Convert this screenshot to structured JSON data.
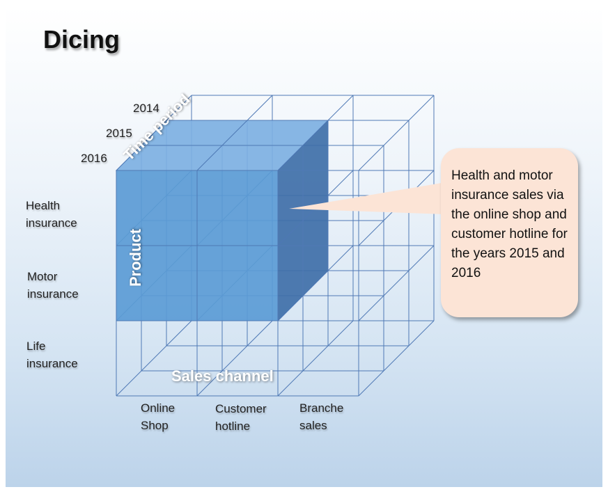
{
  "slide": {
    "title": "Dicing",
    "time_period": {
      "axis_title": "Time period",
      "years": [
        "2014",
        "2015",
        "2016"
      ]
    },
    "product": {
      "axis_title": "Product",
      "items": [
        {
          "line1": "Health",
          "line2": "insurance"
        },
        {
          "line1": "Motor",
          "line2": "insurance"
        },
        {
          "line1": "Life",
          "line2": "insurance"
        }
      ]
    },
    "sales_channel": {
      "axis_title": "Sales channel",
      "items": [
        {
          "line1": "Online",
          "line2": "Shop"
        },
        {
          "line1": "Customer",
          "line2": "hotline"
        },
        {
          "line1": "Branche",
          "line2": "sales"
        }
      ]
    },
    "callout": {
      "text": "Health and motor insurance sales via the online shop and customer hotline for the years 2015 and 2016"
    },
    "colors": {
      "cube_edge": "#4f79b5",
      "dice_front": "#5b9bd5",
      "dice_top": "#7eb0e2",
      "dice_side": "#3f6fa8",
      "callout_fill": "#fce4d6"
    }
  }
}
